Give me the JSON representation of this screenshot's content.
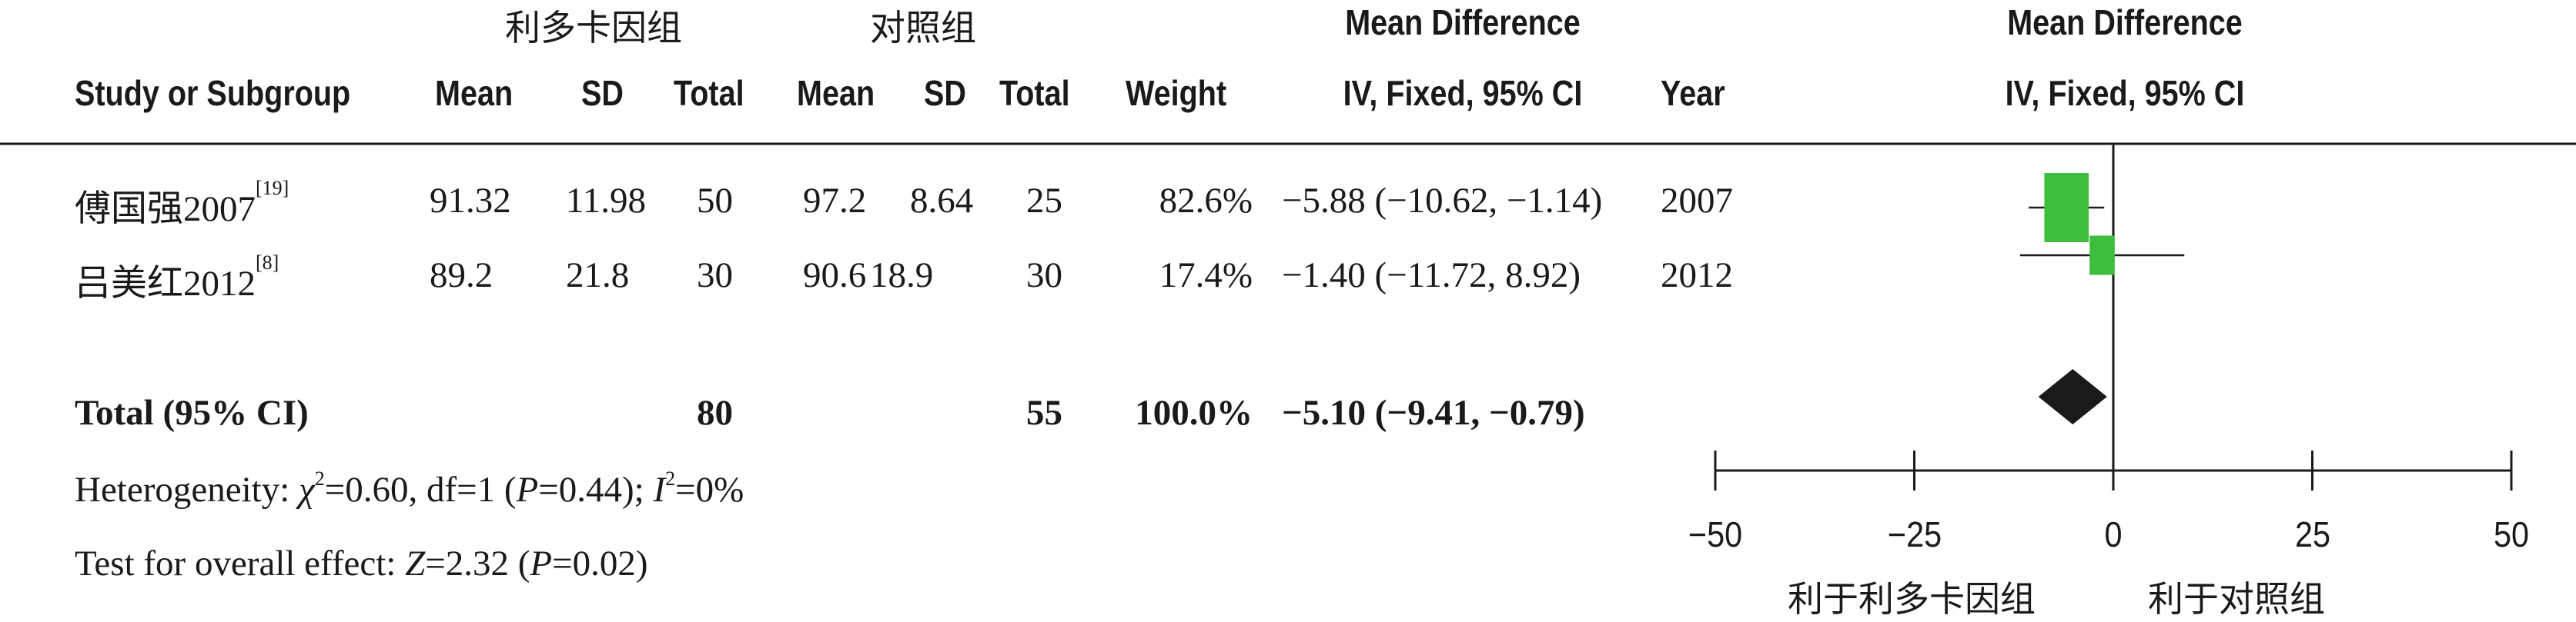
{
  "group_headers": {
    "experimental": "利多卡因组",
    "control": "对照组",
    "md_top": "Mean Difference",
    "md_top_plot": "Mean Difference"
  },
  "columns": {
    "study": "Study or Subgroup",
    "exp_mean": "Mean",
    "exp_sd": "SD",
    "exp_total": "Total",
    "ctl_mean": "Mean",
    "ctl_sd": "SD",
    "ctl_total": "Total",
    "weight": "Weight",
    "md_ci": "IV, Fixed, 95% CI",
    "year": "Year",
    "plot_ci": "IV, Fixed, 95% CI"
  },
  "studies": [
    {
      "name": "傅国强2007",
      "ref": "[19]",
      "exp_mean": "91.32",
      "exp_sd": "11.98",
      "exp_total": "50",
      "ctl_mean": "97.2",
      "ctl_sd": "8.64",
      "ctl_total": "25",
      "weight": "82.6%",
      "md_ci": "−5.88 (−10.62, −1.14)",
      "year": "2007"
    },
    {
      "name": "吕美红2012",
      "ref": "[8]",
      "exp_mean": "89.2",
      "exp_sd": "21.8",
      "exp_total": "30",
      "ctl_mean": "90.6",
      "ctl_sd": "18.9",
      "ctl_total": "30",
      "weight": "17.4%",
      "md_ci": "−1.40 (−11.72, 8.92)",
      "year": "2012"
    }
  ],
  "total": {
    "label": "Total (95% CI)",
    "exp_total": "80",
    "ctl_total": "55",
    "weight": "100.0%",
    "md_ci": "−5.10 (−9.41, −0.79)"
  },
  "heterogeneity": {
    "prefix": "Heterogeneity: ",
    "chi": "χ",
    "chi_rest": "=0.60, df=1 (",
    "p": "P",
    "p_rest": "=0.44); ",
    "i": "I",
    "i_rest": "=0%"
  },
  "overall_effect": {
    "prefix": "Test for overall effect: ",
    "z": "Z",
    "z_rest": "=2.32 (",
    "p": "P",
    "p_rest": "=0.02)"
  },
  "footer": {
    "favours_left": "利于利多卡因组",
    "favours_right": "利于对照组"
  },
  "colors": {
    "study_square": "#3dbe3d",
    "diamond": "#1a1a1a",
    "lines": "#1a1a1a"
  },
  "chart_data": {
    "type": "forest",
    "xlim": [
      -50,
      50
    ],
    "ticks": [
      -50,
      -25,
      0,
      25,
      50
    ],
    "tick_labels": [
      "−50",
      "−25",
      "0",
      "25",
      "50"
    ],
    "studies": [
      {
        "name": "傅国强2007",
        "md": -5.88,
        "lower": -10.62,
        "upper": -1.14,
        "weight": 82.6
      },
      {
        "name": "吕美红2012",
        "md": -1.4,
        "lower": -11.72,
        "upper": 8.92,
        "weight": 17.4
      }
    ],
    "pooled": {
      "md": -5.1,
      "lower": -9.41,
      "upper": -0.79
    }
  }
}
